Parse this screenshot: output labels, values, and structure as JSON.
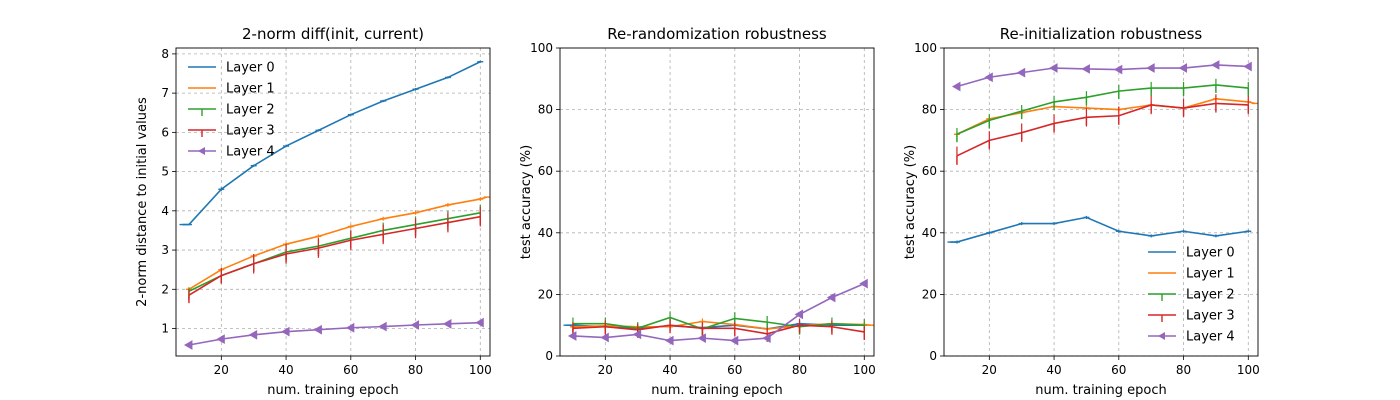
{
  "colors": {
    "Layer 0": "#1f77b4",
    "Layer 1": "#ff7f0e",
    "Layer 2": "#2ca02c",
    "Layer 3": "#d62728",
    "Layer 4": "#9467bd"
  },
  "chart_data": [
    {
      "type": "line",
      "title": "2-norm diff(init, current)",
      "xlabel": "num. training epoch",
      "ylabel": "2-norm distance to initial values",
      "xlim": [
        6,
        103
      ],
      "ylim": [
        0.3,
        8.15
      ],
      "xticks": [
        20,
        40,
        60,
        80,
        100
      ],
      "yticks": [
        1,
        2,
        3,
        4,
        5,
        6,
        7,
        8
      ],
      "grid": true,
      "legend": "upper-left",
      "legend_labels": [
        "Layer 0",
        "Layer 1",
        "Layer 2",
        "Layer 3",
        "Layer 4"
      ],
      "series": [
        {
          "name": "Layer 0",
          "x": [
            8,
            10,
            20,
            30,
            40,
            50,
            60,
            70,
            80,
            90,
            100
          ],
          "y": [
            3.65,
            3.65,
            4.55,
            5.15,
            5.65,
            6.05,
            6.45,
            6.8,
            7.1,
            7.4,
            7.8
          ],
          "err": [
            0.0,
            0.0,
            0.05,
            0.03,
            0.03,
            0.03,
            0.03,
            0.03,
            0.03,
            0.03,
            0.03
          ]
        },
        {
          "name": "Layer 1",
          "x": [
            10,
            20,
            30,
            40,
            50,
            60,
            70,
            80,
            90,
            100,
            102
          ],
          "y": [
            2.0,
            2.5,
            2.85,
            3.15,
            3.35,
            3.6,
            3.8,
            3.95,
            4.15,
            4.3,
            4.35
          ],
          "err": [
            0.05,
            0.05,
            0.05,
            0.05,
            0.05,
            0.05,
            0.05,
            0.05,
            0.05,
            0.05,
            0.0
          ]
        },
        {
          "name": "Layer 2",
          "x": [
            10,
            20,
            30,
            40,
            50,
            60,
            70,
            80,
            90,
            100
          ],
          "y": [
            1.95,
            2.35,
            2.65,
            2.95,
            3.1,
            3.3,
            3.5,
            3.65,
            3.8,
            3.95
          ],
          "err": [
            0.1,
            0.15,
            0.2,
            0.2,
            0.2,
            0.2,
            0.2,
            0.2,
            0.2,
            0.2
          ]
        },
        {
          "name": "Layer 3",
          "x": [
            10,
            20,
            30,
            40,
            50,
            60,
            70,
            80,
            90,
            100
          ],
          "y": [
            1.85,
            2.35,
            2.65,
            2.9,
            3.05,
            3.25,
            3.4,
            3.55,
            3.7,
            3.85
          ],
          "err": [
            0.15,
            0.2,
            0.25,
            0.25,
            0.25,
            0.25,
            0.25,
            0.25,
            0.25,
            0.25
          ]
        },
        {
          "name": "Layer 4",
          "x": [
            10,
            20,
            30,
            40,
            50,
            60,
            70,
            80,
            90,
            100
          ],
          "y": [
            0.58,
            0.73,
            0.84,
            0.92,
            0.97,
            1.02,
            1.05,
            1.09,
            1.12,
            1.15
          ],
          "err": [
            0.03,
            0.03,
            0.03,
            0.03,
            0.03,
            0.03,
            0.03,
            0.03,
            0.03,
            0.03
          ]
        }
      ]
    },
    {
      "type": "line",
      "title": "Re-randomization robustness",
      "xlabel": "num. training epoch",
      "ylabel": "test accuracy (%)",
      "xlim": [
        6,
        103
      ],
      "ylim": [
        0,
        100
      ],
      "xticks": [
        20,
        40,
        60,
        80,
        100
      ],
      "yticks": [
        0,
        20,
        40,
        60,
        80,
        100
      ],
      "grid": true,
      "series": [
        {
          "name": "Layer 0",
          "x": [
            8,
            10,
            20,
            30,
            40,
            50,
            60,
            70,
            80,
            90,
            100
          ],
          "y": [
            10,
            10,
            9.5,
            9,
            9.8,
            9.2,
            10,
            8.8,
            10.5,
            10,
            10
          ],
          "err": [
            0,
            0.5,
            0.5,
            0.5,
            0.5,
            0.5,
            0.5,
            0.5,
            0.5,
            0.5,
            0.5
          ]
        },
        {
          "name": "Layer 1",
          "x": [
            10,
            20,
            30,
            40,
            50,
            60,
            70,
            80,
            90,
            100,
            102
          ],
          "y": [
            9.5,
            9.8,
            9.5,
            9.5,
            11.2,
            10.2,
            8.8,
            9.8,
            10.5,
            10.2,
            10
          ],
          "err": [
            1,
            1,
            1,
            1,
            1,
            1,
            1,
            1,
            1,
            1,
            0
          ]
        },
        {
          "name": "Layer 2",
          "x": [
            10,
            20,
            30,
            40,
            50,
            60,
            70,
            80,
            90,
            100
          ],
          "y": [
            10.5,
            10.5,
            9,
            12.5,
            8.8,
            12.2,
            11,
            9.5,
            10.5,
            10
          ],
          "err": [
            2,
            2,
            2,
            2,
            2,
            2,
            2,
            2,
            2,
            2
          ]
        },
        {
          "name": "Layer 3",
          "x": [
            10,
            20,
            30,
            40,
            50,
            60,
            70,
            80,
            90,
            100
          ],
          "y": [
            9,
            9.5,
            8.5,
            10,
            9,
            9,
            7.2,
            10,
            9.5,
            7.8
          ],
          "err": [
            2,
            2,
            2,
            2,
            2,
            2,
            2,
            2,
            2,
            2
          ]
        },
        {
          "name": "Layer 4",
          "x": [
            10,
            20,
            30,
            40,
            50,
            60,
            70,
            80,
            90,
            100
          ],
          "y": [
            6.5,
            6,
            7,
            5,
            5.8,
            5,
            5.8,
            13.5,
            19,
            23.5
          ],
          "err": [
            0.8,
            0.8,
            0.8,
            0.8,
            0.8,
            0.8,
            0.8,
            0.8,
            0.8,
            0.8
          ]
        }
      ]
    },
    {
      "type": "line",
      "title": "Re-initialization robustness",
      "xlabel": "num. training epoch",
      "ylabel": "test accuracy (%)",
      "xlim": [
        6,
        103
      ],
      "ylim": [
        0,
        100
      ],
      "xticks": [
        20,
        40,
        60,
        80,
        100
      ],
      "yticks": [
        0,
        20,
        40,
        60,
        80,
        100
      ],
      "grid": true,
      "legend": "lower-right",
      "legend_labels": [
        "Layer 0",
        "Layer 1",
        "Layer 2",
        "Layer 3",
        "Layer 4"
      ],
      "series": [
        {
          "name": "Layer 0",
          "x": [
            8,
            10,
            20,
            30,
            40,
            50,
            60,
            70,
            80,
            90,
            100
          ],
          "y": [
            37,
            37,
            40,
            43,
            43,
            45,
            40.5,
            39,
            40.5,
            39,
            40.5
          ],
          "err": [
            0,
            0.5,
            0.5,
            0.5,
            0.5,
            0.5,
            0.5,
            0.5,
            0.5,
            0.5,
            0.5
          ]
        },
        {
          "name": "Layer 1",
          "x": [
            10,
            20,
            30,
            40,
            50,
            60,
            70,
            80,
            90,
            100,
            102
          ],
          "y": [
            72,
            77,
            79,
            81,
            80.5,
            80,
            81.5,
            80.5,
            83.5,
            82.5,
            82
          ],
          "err": [
            1,
            1,
            1,
            1,
            1,
            1,
            1,
            1,
            1,
            1,
            0
          ]
        },
        {
          "name": "Layer 2",
          "x": [
            10,
            20,
            30,
            40,
            50,
            60,
            70,
            80,
            90,
            100
          ],
          "y": [
            72,
            76.5,
            79.5,
            82.5,
            84,
            86,
            87,
            87,
            88,
            87
          ],
          "err": [
            2,
            2,
            2,
            2,
            2,
            2,
            2,
            2,
            2,
            2
          ]
        },
        {
          "name": "Layer 3",
          "x": [
            10,
            20,
            30,
            40,
            50,
            60,
            70,
            80,
            90,
            100
          ],
          "y": [
            65,
            70,
            72.5,
            75.5,
            77.5,
            78,
            81.5,
            80.5,
            82,
            81.5
          ],
          "err": [
            3,
            3,
            3,
            3,
            3,
            3,
            3,
            3,
            3,
            3
          ]
        },
        {
          "name": "Layer 4",
          "x": [
            10,
            20,
            30,
            40,
            50,
            60,
            70,
            80,
            90,
            100
          ],
          "y": [
            87.5,
            90.5,
            92,
            93.5,
            93.2,
            93,
            93.5,
            93.5,
            94.5,
            94
          ],
          "err": [
            0.8,
            0.8,
            0.8,
            0.8,
            0.8,
            0.8,
            0.8,
            0.8,
            0.8,
            0.8
          ]
        }
      ]
    }
  ]
}
